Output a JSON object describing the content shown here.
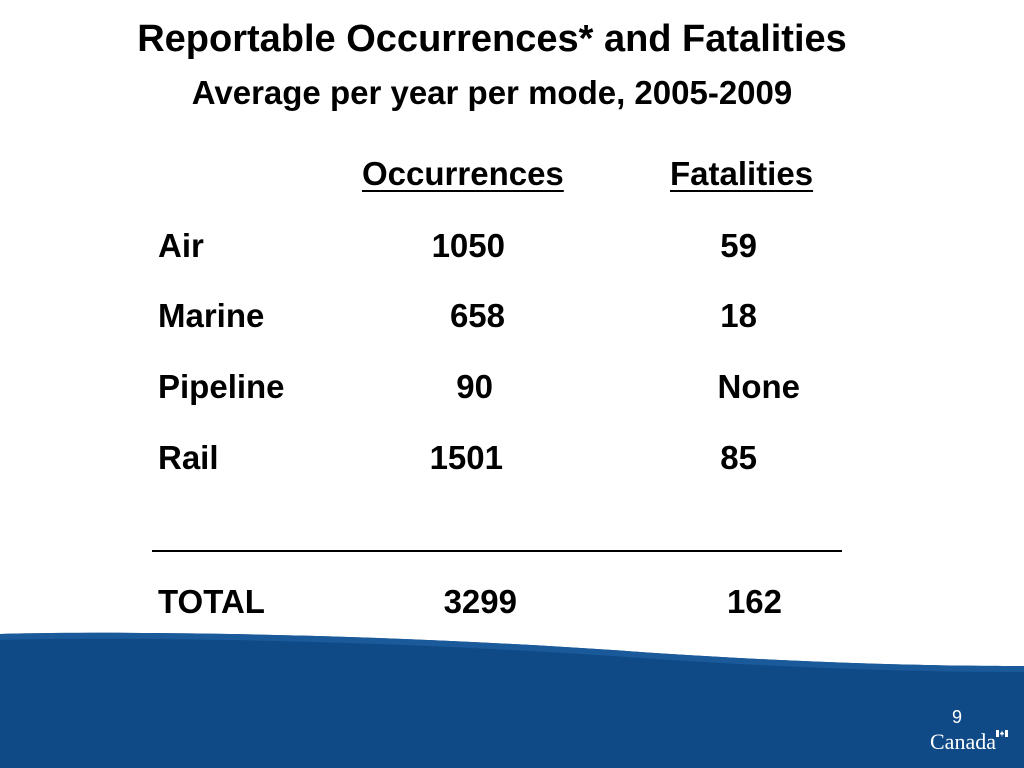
{
  "title": {
    "line1": "Reportable Occurrences* and Fatalities",
    "line2": "Average per year per mode, 2005-2009"
  },
  "table": {
    "headers": {
      "occurrences": "Occurrences",
      "fatalities": "Fatalities"
    },
    "rows": [
      {
        "mode": "Air",
        "occurrences": "1050",
        "fatalities": "59"
      },
      {
        "mode": "Marine",
        "occurrences": "658",
        "fatalities": "18"
      },
      {
        "mode": "Pipeline",
        "occurrences": "90",
        "fatalities": "None"
      },
      {
        "mode": "Rail",
        "occurrences": "1501",
        "fatalities": "85"
      }
    ],
    "total": {
      "label": "TOTAL",
      "occurrences": "3299",
      "fatalities": "162"
    }
  },
  "footer": {
    "page_number": "9",
    "wordmark": "Canada",
    "wave_color": "#0f4a86",
    "wave_highlight": "#1a5a9a"
  }
}
